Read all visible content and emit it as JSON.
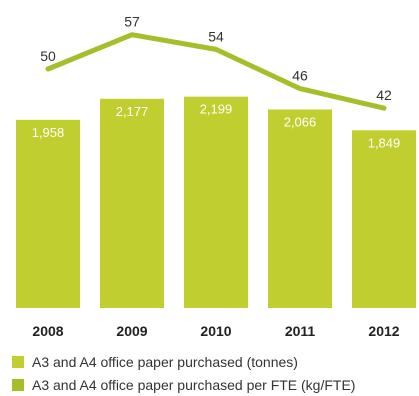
{
  "chart_data": {
    "type": "bar",
    "categories": [
      "2008",
      "2009",
      "2010",
      "2011",
      "2012"
    ],
    "series": [
      {
        "name": "A3 and A4 office paper purchased (tonnes)",
        "type": "bar",
        "values": [
          1958,
          2177,
          2199,
          2066,
          1849
        ],
        "labels": [
          "1,958",
          "2,177",
          "2,199",
          "2,066",
          "1,849"
        ],
        "color": "#c0cf2f"
      },
      {
        "name": "A3 and A4 office paper purchased per FTE (kg/FTE)",
        "type": "line",
        "values": [
          50,
          57,
          54,
          46,
          42
        ],
        "labels": [
          "50",
          "57",
          "54",
          "46",
          "42"
        ],
        "color": "#a8bd2a"
      }
    ],
    "legend_position": "bottom-left",
    "grid": false,
    "title": "",
    "xlabel": "",
    "ylabel": ""
  }
}
